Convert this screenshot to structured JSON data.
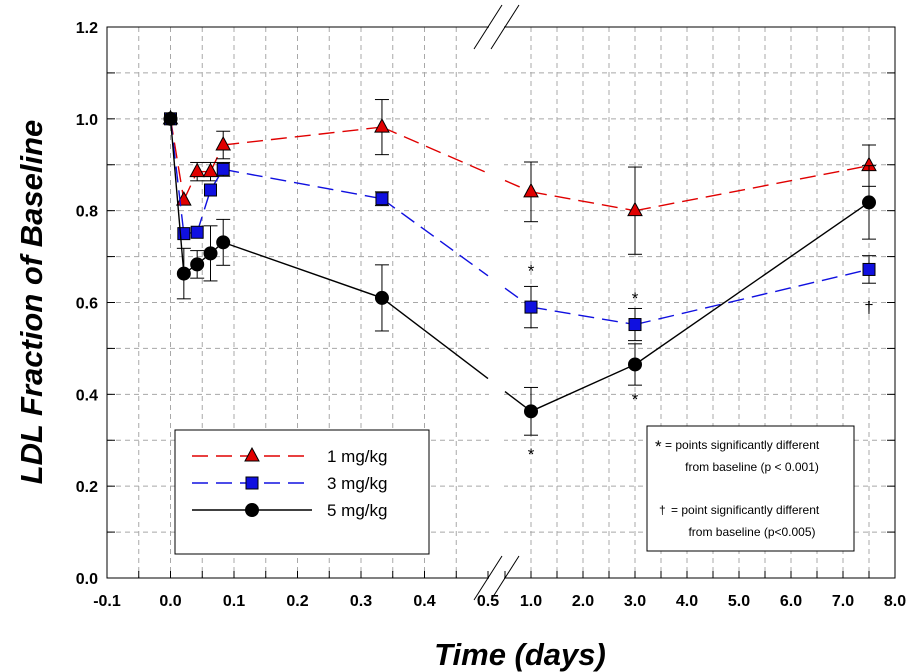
{
  "chart_data": {
    "type": "line",
    "ylabel": "LDL Fraction of Baseline",
    "xlabel": "Time (days)",
    "ylim": [
      0,
      1.2
    ],
    "y_ticks": [
      "0.0",
      "0.2",
      "0.4",
      "0.6",
      "0.8",
      "1.0",
      "1.2"
    ],
    "x_ticks_left": [
      "-0.1",
      "0.0",
      "0.1",
      "0.2",
      "0.3",
      "0.4",
      "0.5"
    ],
    "x_ticks_right": [
      "1.0",
      "2.0",
      "3.0",
      "4.0",
      "5.0",
      "6.0",
      "7.0",
      "8.0"
    ],
    "xlim_left": [
      -0.1,
      0.5
    ],
    "xlim_right": [
      0.5,
      8.0
    ],
    "axis_break": true,
    "grid": true,
    "legend_position": "lower-left",
    "series": [
      {
        "name": "1 mg/kg",
        "marker": "triangle",
        "color": "#e00000",
        "line_style": "dashed",
        "points": [
          {
            "x": 0.0,
            "y": 1.0,
            "err": 0
          },
          {
            "x": 0.021,
            "y": 0.823,
            "err": 0
          },
          {
            "x": 0.042,
            "y": 0.885,
            "err": 0.02
          },
          {
            "x": 0.063,
            "y": 0.885,
            "err": 0.02
          },
          {
            "x": 0.083,
            "y": 0.943,
            "err": 0.03
          },
          {
            "x": 0.333,
            "y": 0.982,
            "err": 0.06
          },
          {
            "x": 1.0,
            "y": 0.841,
            "err": 0.065
          },
          {
            "x": 3.0,
            "y": 0.8,
            "err": 0.095
          },
          {
            "x": 7.5,
            "y": 0.898,
            "err": 0.045
          }
        ]
      },
      {
        "name": "3 mg/kg",
        "marker": "square",
        "color": "#1010e0",
        "line_style": "dashed",
        "points": [
          {
            "x": 0.0,
            "y": 1.0,
            "err": 0
          },
          {
            "x": 0.021,
            "y": 0.75,
            "err": 0
          },
          {
            "x": 0.042,
            "y": 0.753,
            "err": 0
          },
          {
            "x": 0.063,
            "y": 0.845,
            "err": 0
          },
          {
            "x": 0.083,
            "y": 0.89,
            "err": 0.015
          },
          {
            "x": 0.333,
            "y": 0.826,
            "err": 0.015
          },
          {
            "x": 1.0,
            "y": 0.59,
            "err": 0.045
          },
          {
            "x": 3.0,
            "y": 0.552,
            "err": 0.035
          },
          {
            "x": 7.5,
            "y": 0.672,
            "err": 0.03
          }
        ]
      },
      {
        "name": "5 mg/kg",
        "marker": "circle",
        "color": "#000000",
        "line_style": "solid",
        "points": [
          {
            "x": 0.0,
            "y": 1.0,
            "err": 0
          },
          {
            "x": 0.021,
            "y": 0.663,
            "err": 0.055
          },
          {
            "x": 0.042,
            "y": 0.683,
            "err": 0.03
          },
          {
            "x": 0.063,
            "y": 0.707,
            "err": 0.06
          },
          {
            "x": 0.083,
            "y": 0.731,
            "err": 0.05
          },
          {
            "x": 0.333,
            "y": 0.61,
            "err": 0.072
          },
          {
            "x": 1.0,
            "y": 0.363,
            "err": 0.052
          },
          {
            "x": 3.0,
            "y": 0.465,
            "err": 0.045
          },
          {
            "x": 7.5,
            "y": 0.818,
            "err": 0.08
          }
        ]
      }
    ],
    "annotations": [
      {
        "text": "*",
        "x": 1.0,
        "y": 0.67
      },
      {
        "text": "*",
        "x": 1.0,
        "y": 0.27
      },
      {
        "text": "*",
        "x": 3.0,
        "y": 0.61
      },
      {
        "text": "*",
        "x": 3.0,
        "y": 0.39
      },
      {
        "text": "†",
        "x": 7.5,
        "y": 0.59
      }
    ],
    "note": {
      "star_symbol": "*",
      "star_line1": "= points significantly different",
      "star_line2": "from baseline (p < 0.001)",
      "dagger_symbol": "†",
      "dagger_line1": "= point significantly different",
      "dagger_line2": "from baseline (p<0.005)"
    }
  }
}
